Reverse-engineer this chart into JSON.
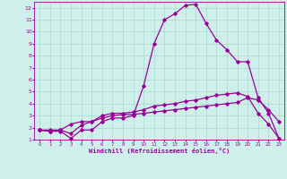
{
  "xlabel": "Windchill (Refroidissement éolien,°C)",
  "background_color": "#cff0ea",
  "grid_color": "#aad8ce",
  "line_color": "#990099",
  "xlim": [
    -0.5,
    23.5
  ],
  "ylim": [
    1,
    12.5
  ],
  "xticks": [
    0,
    1,
    2,
    3,
    4,
    5,
    6,
    7,
    8,
    9,
    10,
    11,
    12,
    13,
    14,
    15,
    16,
    17,
    18,
    19,
    20,
    21,
    22,
    23
  ],
  "yticks": [
    1,
    2,
    3,
    4,
    5,
    6,
    7,
    8,
    9,
    10,
    11,
    12
  ],
  "series1_x": [
    0,
    1,
    2,
    3,
    4,
    5,
    6,
    7,
    8,
    9,
    10,
    11,
    12,
    13,
    14,
    15,
    16,
    17,
    18,
    19,
    20,
    21,
    22,
    23
  ],
  "series1_y": [
    1.8,
    1.7,
    1.7,
    1.1,
    1.8,
    1.8,
    2.5,
    2.8,
    2.8,
    3.0,
    5.5,
    9.0,
    11.0,
    11.5,
    12.2,
    12.3,
    10.7,
    9.3,
    8.5,
    7.5,
    7.5,
    4.5,
    3.2,
    1.1
  ],
  "series2_x": [
    0,
    1,
    2,
    3,
    4,
    5,
    6,
    7,
    8,
    9,
    10,
    11,
    12,
    13,
    14,
    15,
    16,
    17,
    18,
    19,
    20,
    21,
    22,
    23
  ],
  "series2_y": [
    1.8,
    1.8,
    1.8,
    2.3,
    2.5,
    2.5,
    3.0,
    3.2,
    3.2,
    3.3,
    3.5,
    3.8,
    3.9,
    4.0,
    4.2,
    4.3,
    4.5,
    4.7,
    4.8,
    4.9,
    4.6,
    3.2,
    2.3,
    1.1
  ],
  "series3_x": [
    0,
    1,
    2,
    3,
    4,
    5,
    6,
    7,
    8,
    9,
    10,
    11,
    12,
    13,
    14,
    15,
    16,
    17,
    18,
    19,
    20,
    21,
    22,
    23
  ],
  "series3_y": [
    1.8,
    1.7,
    1.8,
    1.5,
    2.2,
    2.5,
    2.8,
    3.0,
    3.1,
    3.1,
    3.2,
    3.3,
    3.4,
    3.5,
    3.6,
    3.7,
    3.8,
    3.9,
    4.0,
    4.1,
    4.5,
    4.3,
    3.5,
    2.5
  ]
}
